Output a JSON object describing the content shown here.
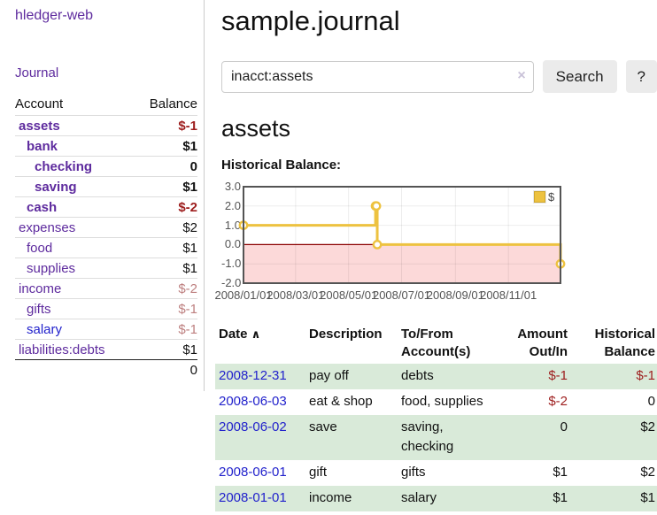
{
  "sidebar": {
    "app_title": "hledger-web",
    "journal_link": "Journal",
    "accounts_header": {
      "account": "Account",
      "balance": "Balance"
    },
    "accounts": [
      {
        "name": "assets",
        "balance": "$-1",
        "depth": 0,
        "bold": true,
        "negative": true,
        "unvisited": false
      },
      {
        "name": "bank",
        "balance": "$1",
        "depth": 1,
        "bold": true,
        "negative": false,
        "unvisited": false
      },
      {
        "name": "checking",
        "balance": "0",
        "depth": 2,
        "bold": true,
        "negative": false,
        "unvisited": false
      },
      {
        "name": "saving",
        "balance": "$1",
        "depth": 2,
        "bold": true,
        "negative": false,
        "unvisited": false
      },
      {
        "name": "cash",
        "balance": "$-2",
        "depth": 1,
        "bold": true,
        "negative": true,
        "unvisited": false
      },
      {
        "name": "expenses",
        "balance": "$2",
        "depth": 0,
        "bold": false,
        "negative": false,
        "unvisited": false
      },
      {
        "name": "food",
        "balance": "$1",
        "depth": 1,
        "bold": false,
        "negative": false,
        "unvisited": false
      },
      {
        "name": "supplies",
        "balance": "$1",
        "depth": 1,
        "bold": false,
        "negative": false,
        "unvisited": false
      },
      {
        "name": "income",
        "balance": "$-2",
        "depth": 0,
        "bold": false,
        "negative": true,
        "unvisited": false
      },
      {
        "name": "gifts",
        "balance": "$-1",
        "depth": 1,
        "bold": false,
        "negative": true,
        "unvisited": false
      },
      {
        "name": "salary",
        "balance": "$-1",
        "depth": 1,
        "bold": false,
        "negative": true,
        "unvisited": true
      },
      {
        "name": "liabilities:debts",
        "balance": "$1",
        "depth": 0,
        "bold": false,
        "negative": false,
        "unvisited": false
      }
    ],
    "total": "0"
  },
  "header": {
    "title": "sample.journal"
  },
  "search": {
    "value": "inacct:assets",
    "clear_icon": "×",
    "button_label": "Search",
    "help_label": "?"
  },
  "account_page": {
    "title": "assets",
    "chart_label": "Historical Balance:"
  },
  "chart_data": {
    "type": "line",
    "step": true,
    "title": "Historical Balance:",
    "series": [
      {
        "name": "$",
        "color": "#edc240",
        "points": [
          [
            "2008-01-01",
            1
          ],
          [
            "2008-06-01",
            2
          ],
          [
            "2008-06-02",
            2
          ],
          [
            "2008-06-03",
            0
          ],
          [
            "2008-12-31",
            -1
          ]
        ]
      }
    ],
    "xrange": [
      "2008-01-01",
      "2008-12-31"
    ],
    "ylim": [
      -2,
      3
    ],
    "yticks": [
      3,
      2,
      1,
      0,
      -1,
      -2
    ],
    "ytick_labels": [
      "3.0",
      "2.0",
      "1.0",
      "0.0",
      "-1.0",
      "-2.0"
    ],
    "xticks": [
      "2008/01/01",
      "2008/03/01",
      "2008/05/01",
      "2008/07/01",
      "2008/09/01",
      "2008/11/01"
    ],
    "legend": {
      "label": "$",
      "position": "top-right"
    },
    "grid": true,
    "negative_region_color": "#fcd9d9",
    "zero_line_color": "#8b0000",
    "border_color": "#545454"
  },
  "register": {
    "columns": [
      "Date",
      "Description",
      "To/From Account(s)",
      "Amount Out/In",
      "Historical Balance"
    ],
    "sort_icon": "∧",
    "rows": [
      {
        "date": "2008-12-31",
        "description": "pay off",
        "accounts": "debts",
        "amount": "$-1",
        "balance": "$-1"
      },
      {
        "date": "2008-06-03",
        "description": "eat & shop",
        "accounts": "food, supplies",
        "amount": "$-2",
        "balance": "0"
      },
      {
        "date": "2008-06-02",
        "description": "save",
        "accounts": "saving, checking",
        "amount": "0",
        "balance": "$2"
      },
      {
        "date": "2008-06-01",
        "description": "gift",
        "accounts": "gifts",
        "amount": "$1",
        "balance": "$2"
      },
      {
        "date": "2008-01-01",
        "description": "income",
        "accounts": "salary",
        "amount": "$1",
        "balance": "$1"
      }
    ]
  },
  "colors": {
    "link_visited_purple": "#5e2b9e",
    "link_blue": "#2222cc",
    "negative_strong": "#9d1d1d",
    "negative_soft": "#bd7f7f",
    "row_stripe_green": "#d9ead9",
    "series_gold": "#edc240",
    "chart_negative_bg": "#fcd9d9",
    "chart_zero_line": "#8b0000"
  }
}
